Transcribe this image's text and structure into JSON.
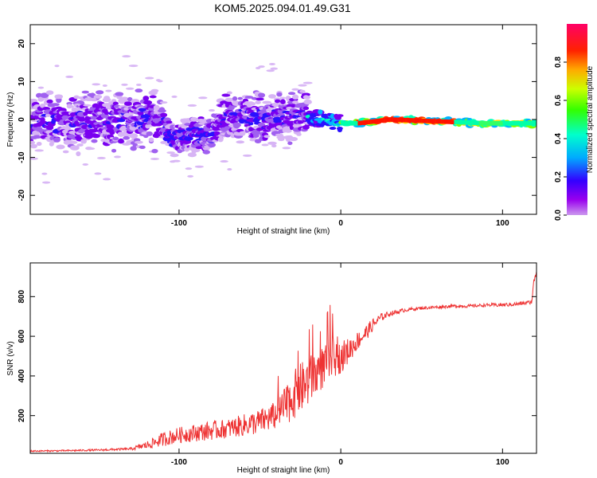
{
  "title": "KOM5.2025.094.01.49.G31",
  "chart_data": [
    {
      "type": "heatmap",
      "xlabel": "Height of straight line (km)",
      "ylabel": "Frequency (Hz)",
      "xlim": [
        -192,
        121
      ],
      "ylim": [
        -25,
        25
      ],
      "x_ticks": [
        -100,
        0,
        100
      ],
      "y_ticks": [
        -20,
        -10,
        0,
        10,
        20
      ],
      "colorbar": {
        "label": "Normalized spectral amplitude",
        "range": [
          0,
          1
        ],
        "ticks": [
          "0.0",
          "0.2",
          "0.4",
          "0.6",
          "0.8"
        ],
        "tick_values": [
          0,
          0.2,
          0.4,
          0.6,
          0.8
        ],
        "colormap": "hsv-reversed (purple→blue→cyan→green→yellow→red→magenta)"
      },
      "ridge": [
        {
          "x": -190,
          "y": -1
        },
        {
          "x": -150,
          "y": -0.5
        },
        {
          "x": -112,
          "y": 0
        },
        {
          "x": -105,
          "y": -5
        },
        {
          "x": -80,
          "y": -4
        },
        {
          "x": -70,
          "y": 1
        },
        {
          "x": -50,
          "y": 0
        },
        {
          "x": -25,
          "y": 1
        },
        {
          "x": -15,
          "y": 0.5
        },
        {
          "x": 0,
          "y": -1
        },
        {
          "x": 10,
          "y": -1
        },
        {
          "x": 30,
          "y": 0
        },
        {
          "x": 60,
          "y": -0.5
        },
        {
          "x": 90,
          "y": -1
        },
        {
          "x": 121,
          "y": -1
        }
      ]
    },
    {
      "type": "line",
      "xlabel": "Height of straight line (km)",
      "ylabel": "SNR (v/v)",
      "xlim": [
        -192,
        121
      ],
      "ylim": [
        10,
        970
      ],
      "x_ticks": [
        -100,
        0,
        100
      ],
      "y_ticks": [
        200,
        400,
        600,
        800
      ],
      "color": "#ee3333",
      "series": [
        {
          "x": [
            -192,
            -170,
            -150,
            -130,
            -120,
            -110,
            -100,
            -90,
            -80,
            -70,
            -60,
            -50,
            -40,
            -35,
            -30,
            -25,
            -20,
            -15,
            -10,
            -5,
            0,
            5,
            10,
            15,
            20,
            25,
            30,
            40,
            50,
            60,
            70,
            80,
            90,
            100,
            110,
            118,
            120,
            121
          ],
          "values": [
            20,
            22,
            25,
            30,
            45,
            70,
            90,
            100,
            110,
            120,
            135,
            150,
            180,
            210,
            260,
            300,
            330,
            380,
            420,
            450,
            470,
            510,
            560,
            600,
            650,
            690,
            710,
            730,
            740,
            745,
            750,
            750,
            755,
            755,
            760,
            770,
            900,
            920
          ],
          "noise": [
            5,
            5,
            6,
            8,
            25,
            45,
            50,
            55,
            60,
            60,
            70,
            80,
            90,
            120,
            150,
            160,
            160,
            150,
            130,
            110,
            100,
            80,
            60,
            50,
            40,
            25,
            15,
            12,
            10,
            10,
            10,
            10,
            10,
            12,
            12,
            12,
            40,
            40
          ]
        }
      ]
    }
  ]
}
